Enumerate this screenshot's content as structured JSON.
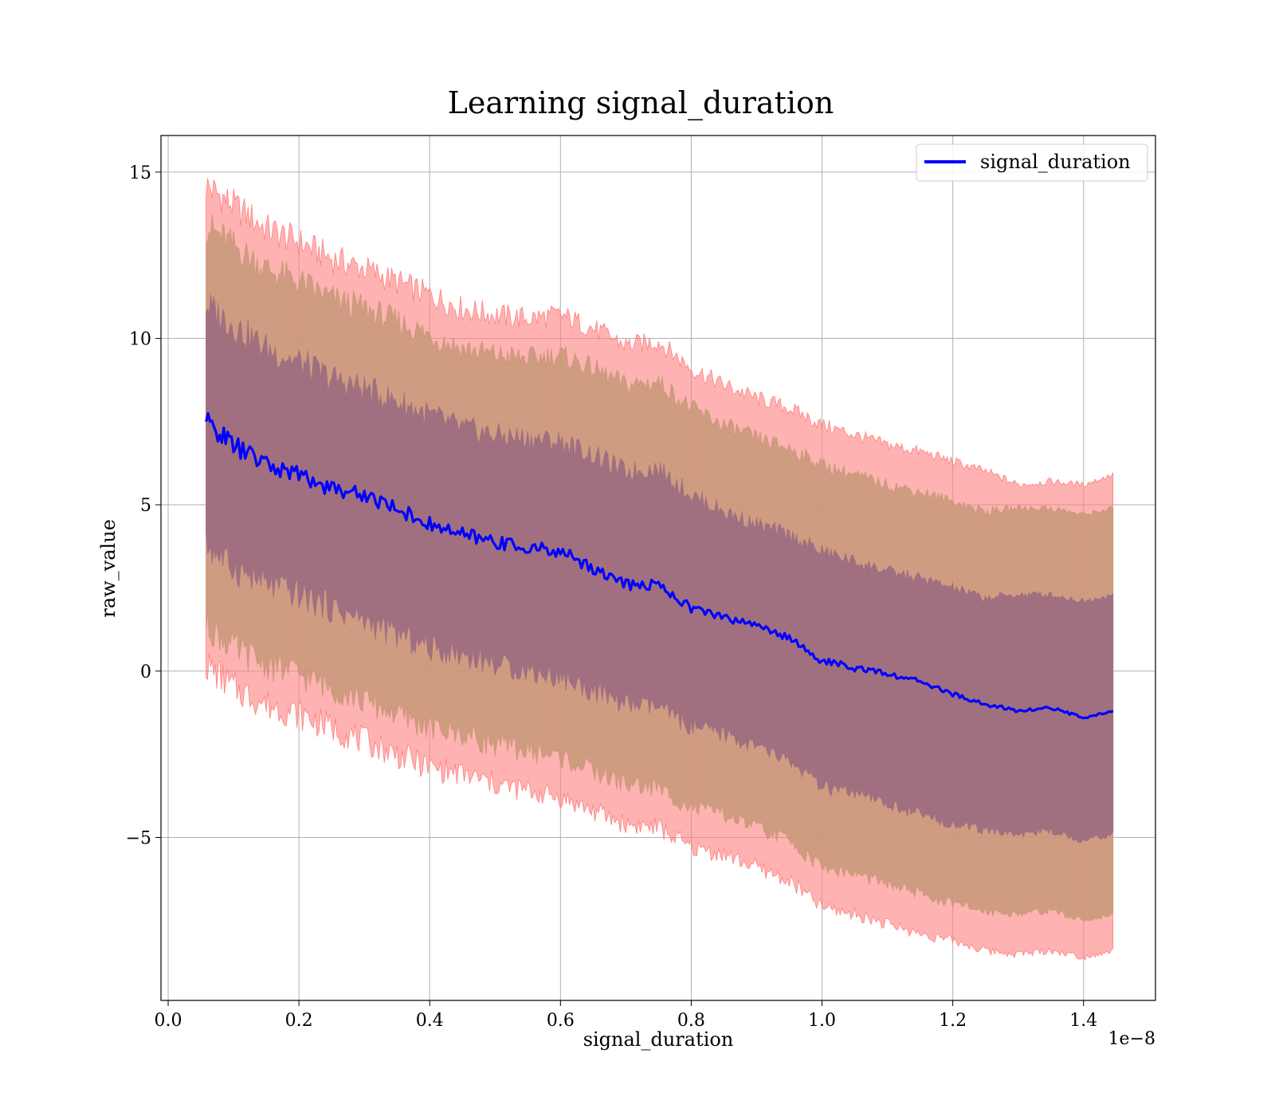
{
  "chart_data": {
    "type": "line",
    "title": "Learning signal_duration",
    "xlabel": "signal_duration",
    "ylabel": "raw_value",
    "x_offset_label": "1e−8",
    "xlim": [
      -1.1e-10,
      1.51e-08
    ],
    "ylim": [
      -9.9,
      16.1
    ],
    "x_ticks": [
      0.0,
      2e-09,
      4e-09,
      6e-09,
      8e-09,
      1e-08,
      1.2e-08,
      1.4e-08
    ],
    "x_tick_labels": [
      "0.0",
      "0.2",
      "0.4",
      "0.6",
      "0.8",
      "1.0",
      "1.2",
      "1.4"
    ],
    "y_ticks": [
      -5,
      0,
      5,
      10,
      15
    ],
    "y_tick_labels": [
      "−5",
      "0",
      "5",
      "10",
      "15"
    ],
    "grid": true,
    "legend_position": "top-right",
    "series": [
      {
        "name": "signal_duration",
        "color": "#0000ff",
        "x": [
          5.8e-10,
          1e-09,
          1.5e-09,
          2e-09,
          2.5e-09,
          3e-09,
          3.5e-09,
          4e-09,
          4.5e-09,
          5e-09,
          5.5e-09,
          6e-09,
          6.5e-09,
          7e-09,
          7.5e-09,
          8e-09,
          8.5e-09,
          9e-09,
          9.5e-09,
          1e-08,
          1.05e-08,
          1.1e-08,
          1.15e-08,
          1.2e-08,
          1.25e-08,
          1.3e-08,
          1.35e-08,
          1.4e-08,
          1.445e-08
        ],
        "values": [
          7.5,
          6.8,
          6.2,
          5.9,
          5.5,
          5.3,
          4.9,
          4.4,
          4.1,
          3.9,
          3.7,
          3.6,
          3.1,
          2.6,
          2.6,
          1.9,
          1.6,
          1.4,
          1.0,
          0.3,
          0.1,
          -0.1,
          -0.3,
          -0.7,
          -1.0,
          -1.2,
          -1.1,
          -1.4,
          -1.2
        ]
      }
    ],
    "bands": [
      {
        "color": "#ff7f7f",
        "opacity": 0.6,
        "x": [
          5.8e-10,
          1e-09,
          1.5e-09,
          2e-09,
          2.5e-09,
          3e-09,
          3.5e-09,
          4e-09,
          4.5e-09,
          5e-09,
          5.5e-09,
          6e-09,
          6.5e-09,
          7e-09,
          7.5e-09,
          8e-09,
          8.5e-09,
          9e-09,
          9.5e-09,
          1e-08,
          1.05e-08,
          1.1e-08,
          1.15e-08,
          1.2e-08,
          1.25e-08,
          1.3e-08,
          1.35e-08,
          1.4e-08,
          1.445e-08
        ],
        "upper": [
          14.6,
          14.0,
          13.3,
          12.9,
          12.4,
          12.1,
          11.7,
          11.3,
          10.9,
          10.7,
          10.6,
          10.7,
          10.3,
          9.8,
          9.9,
          9.1,
          8.6,
          8.2,
          7.9,
          7.4,
          7.1,
          6.8,
          6.6,
          6.3,
          6.0,
          5.6,
          5.7,
          5.6,
          5.9
        ],
        "lower": [
          0.2,
          -0.5,
          -1.0,
          -1.3,
          -1.7,
          -2.1,
          -2.5,
          -2.9,
          -3.1,
          -3.4,
          -3.6,
          -3.8,
          -4.2,
          -4.6,
          -4.7,
          -5.3,
          -5.5,
          -5.9,
          -6.3,
          -7.1,
          -7.3,
          -7.6,
          -7.9,
          -8.1,
          -8.4,
          -8.5,
          -8.4,
          -8.6,
          -8.4
        ]
      },
      {
        "color": "#c89878",
        "opacity": 0.85,
        "x": [
          5.8e-10,
          1e-09,
          1.5e-09,
          2e-09,
          2.5e-09,
          3e-09,
          3.5e-09,
          4e-09,
          4.5e-09,
          5e-09,
          5.5e-09,
          6e-09,
          6.5e-09,
          7e-09,
          7.5e-09,
          8e-09,
          8.5e-09,
          9e-09,
          9.5e-09,
          1e-08,
          1.05e-08,
          1.1e-08,
          1.15e-08,
          1.2e-08,
          1.25e-08,
          1.3e-08,
          1.35e-08,
          1.4e-08,
          1.445e-08
        ],
        "upper": [
          13.4,
          12.8,
          12.1,
          11.7,
          11.2,
          10.9,
          10.5,
          10.1,
          9.7,
          9.5,
          9.4,
          9.5,
          9.1,
          8.6,
          8.7,
          7.9,
          7.4,
          7.0,
          6.7,
          6.2,
          5.9,
          5.6,
          5.4,
          5.1,
          4.8,
          4.9,
          4.9,
          4.7,
          4.9
        ],
        "lower": [
          1.4,
          0.7,
          0.2,
          -0.1,
          -0.5,
          -0.9,
          -1.3,
          -1.7,
          -1.9,
          -2.2,
          -2.4,
          -2.6,
          -3.0,
          -3.4,
          -3.5,
          -4.1,
          -4.3,
          -4.7,
          -5.1,
          -5.9,
          -6.1,
          -6.4,
          -6.7,
          -7.0,
          -7.2,
          -7.3,
          -7.2,
          -7.5,
          -7.3
        ]
      },
      {
        "color": "#a07080",
        "opacity": 1.0,
        "x": [
          5.8e-10,
          1e-09,
          1.5e-09,
          2e-09,
          2.5e-09,
          3e-09,
          3.5e-09,
          4e-09,
          4.5e-09,
          5e-09,
          5.5e-09,
          6e-09,
          6.5e-09,
          7e-09,
          7.5e-09,
          8e-09,
          8.5e-09,
          9e-09,
          9.5e-09,
          1e-08,
          1.05e-08,
          1.1e-08,
          1.15e-08,
          1.2e-08,
          1.25e-08,
          1.3e-08,
          1.35e-08,
          1.4e-08,
          1.445e-08
        ],
        "upper": [
          11.0,
          10.4,
          9.7,
          9.3,
          8.8,
          8.5,
          8.1,
          7.7,
          7.3,
          7.1,
          7.0,
          6.9,
          6.5,
          6.0,
          6.1,
          5.3,
          4.8,
          4.4,
          4.1,
          3.6,
          3.3,
          3.0,
          2.8,
          2.5,
          2.2,
          2.3,
          2.3,
          2.1,
          2.3
        ],
        "lower": [
          3.8,
          3.1,
          2.6,
          2.3,
          1.9,
          1.5,
          1.1,
          0.7,
          0.5,
          0.2,
          0.0,
          -0.2,
          -0.6,
          -1.0,
          -1.1,
          -1.7,
          -1.9,
          -2.3,
          -2.7,
          -3.5,
          -3.7,
          -4.0,
          -4.3,
          -4.6,
          -4.8,
          -4.9,
          -4.8,
          -5.1,
          -4.9
        ]
      }
    ]
  }
}
